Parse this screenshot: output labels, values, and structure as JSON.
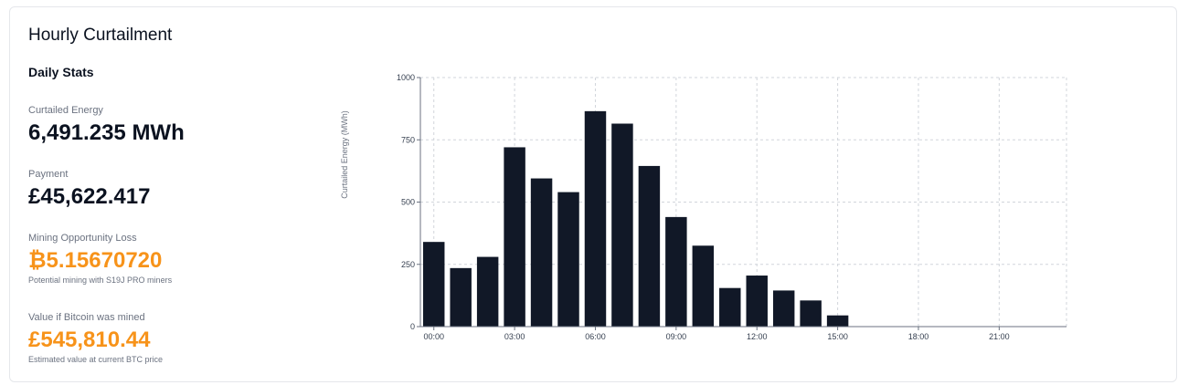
{
  "card": {
    "title": "Hourly Curtailment"
  },
  "stats": {
    "heading": "Daily Stats",
    "items": [
      {
        "label": "Curtailed Energy",
        "value": "6,491.235 MWh",
        "note": ""
      },
      {
        "label": "Payment",
        "value": "£45,622.417",
        "note": ""
      },
      {
        "label": "Mining Opportunity Loss",
        "value": "₿5.15670720",
        "note": "Potential mining with S19J PRO miners"
      },
      {
        "label": "Value if Bitcoin was mined",
        "value": "£545,810.44",
        "note": "Estimated value at current BTC price"
      }
    ],
    "accent_color": "#f7931a"
  },
  "chart_data": {
    "type": "bar",
    "ylabel": "Curtailed Energy (MWh)",
    "ylim": [
      0,
      1000
    ],
    "yticks": [
      0,
      250,
      500,
      750,
      1000
    ],
    "xtick_labels": [
      "00:00",
      "03:00",
      "06:00",
      "09:00",
      "12:00",
      "15:00",
      "18:00",
      "21:00"
    ],
    "categories": [
      "00:00",
      "01:00",
      "02:00",
      "03:00",
      "04:00",
      "05:00",
      "06:00",
      "07:00",
      "08:00",
      "09:00",
      "10:00",
      "11:00",
      "12:00",
      "13:00",
      "14:00",
      "15:00",
      "16:00",
      "17:00",
      "18:00",
      "19:00",
      "20:00",
      "21:00",
      "22:00",
      "23:00"
    ],
    "values": [
      340,
      235,
      280,
      720,
      595,
      540,
      865,
      815,
      645,
      440,
      325,
      155,
      205,
      145,
      105,
      45,
      0,
      0,
      0,
      0,
      0,
      0,
      0,
      0
    ],
    "bar_color": "#111827",
    "grid": true
  }
}
